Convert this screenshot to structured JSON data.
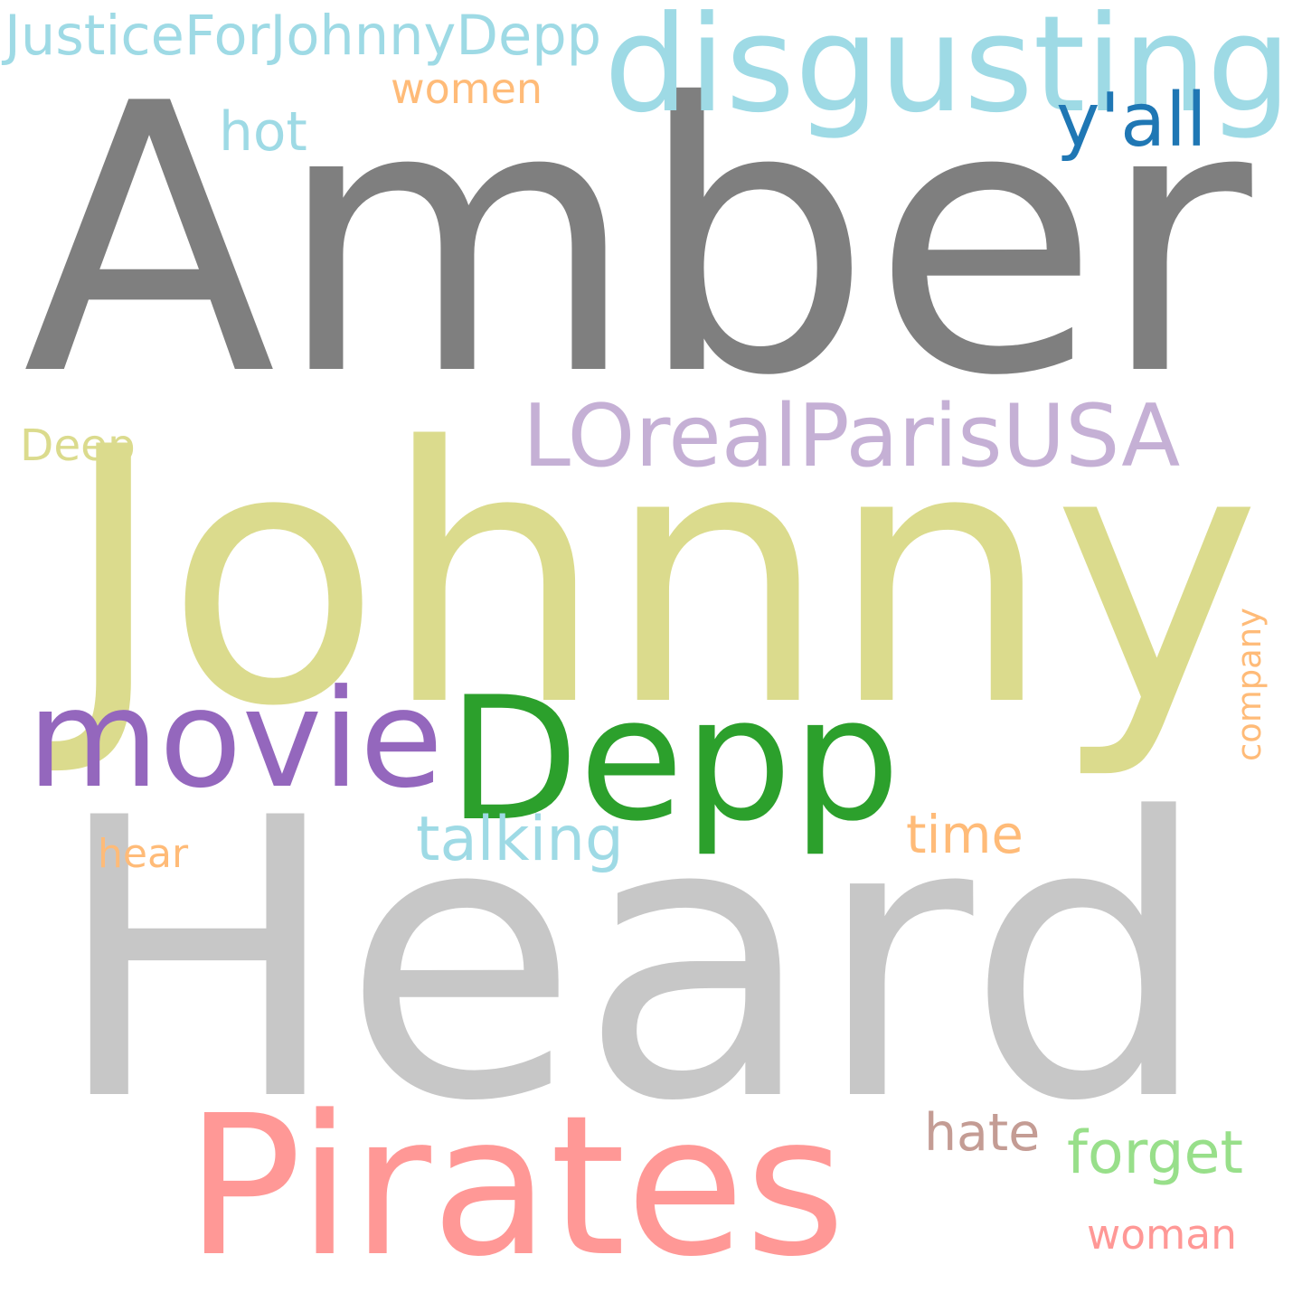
{
  "words": [
    {
      "text": "Amber",
      "color": "#7f7f7f"
    },
    {
      "text": "Johnny",
      "color": "#dbdb8d"
    },
    {
      "text": "Heard",
      "color": "#c7c7c7"
    },
    {
      "text": "Depp",
      "color": "#2ca02c"
    },
    {
      "text": "disgusting",
      "color": "#9edae5"
    },
    {
      "text": "movie",
      "color": "#9467bd"
    },
    {
      "text": "Pirates",
      "color": "#ff9896"
    },
    {
      "text": "LOrealParisUSA",
      "color": "#c5b0d5"
    },
    {
      "text": "JusticeForJohnnyDepp",
      "color": "#9edae5"
    },
    {
      "text": "women",
      "color": "#ffbb78"
    },
    {
      "text": "hot",
      "color": "#9edae5"
    },
    {
      "text": "y'all",
      "color": "#1f77b4"
    },
    {
      "text": "Deep",
      "color": "#dbdb8d"
    },
    {
      "text": "talking",
      "color": "#9edae5"
    },
    {
      "text": "time",
      "color": "#ffbb78"
    },
    {
      "text": "hear",
      "color": "#ffbb78"
    },
    {
      "text": "company",
      "color": "#ffbb78"
    },
    {
      "text": "hate",
      "color": "#c49c94"
    },
    {
      "text": "forget",
      "color": "#98df8a"
    },
    {
      "text": "woman",
      "color": "#ff9896"
    }
  ]
}
